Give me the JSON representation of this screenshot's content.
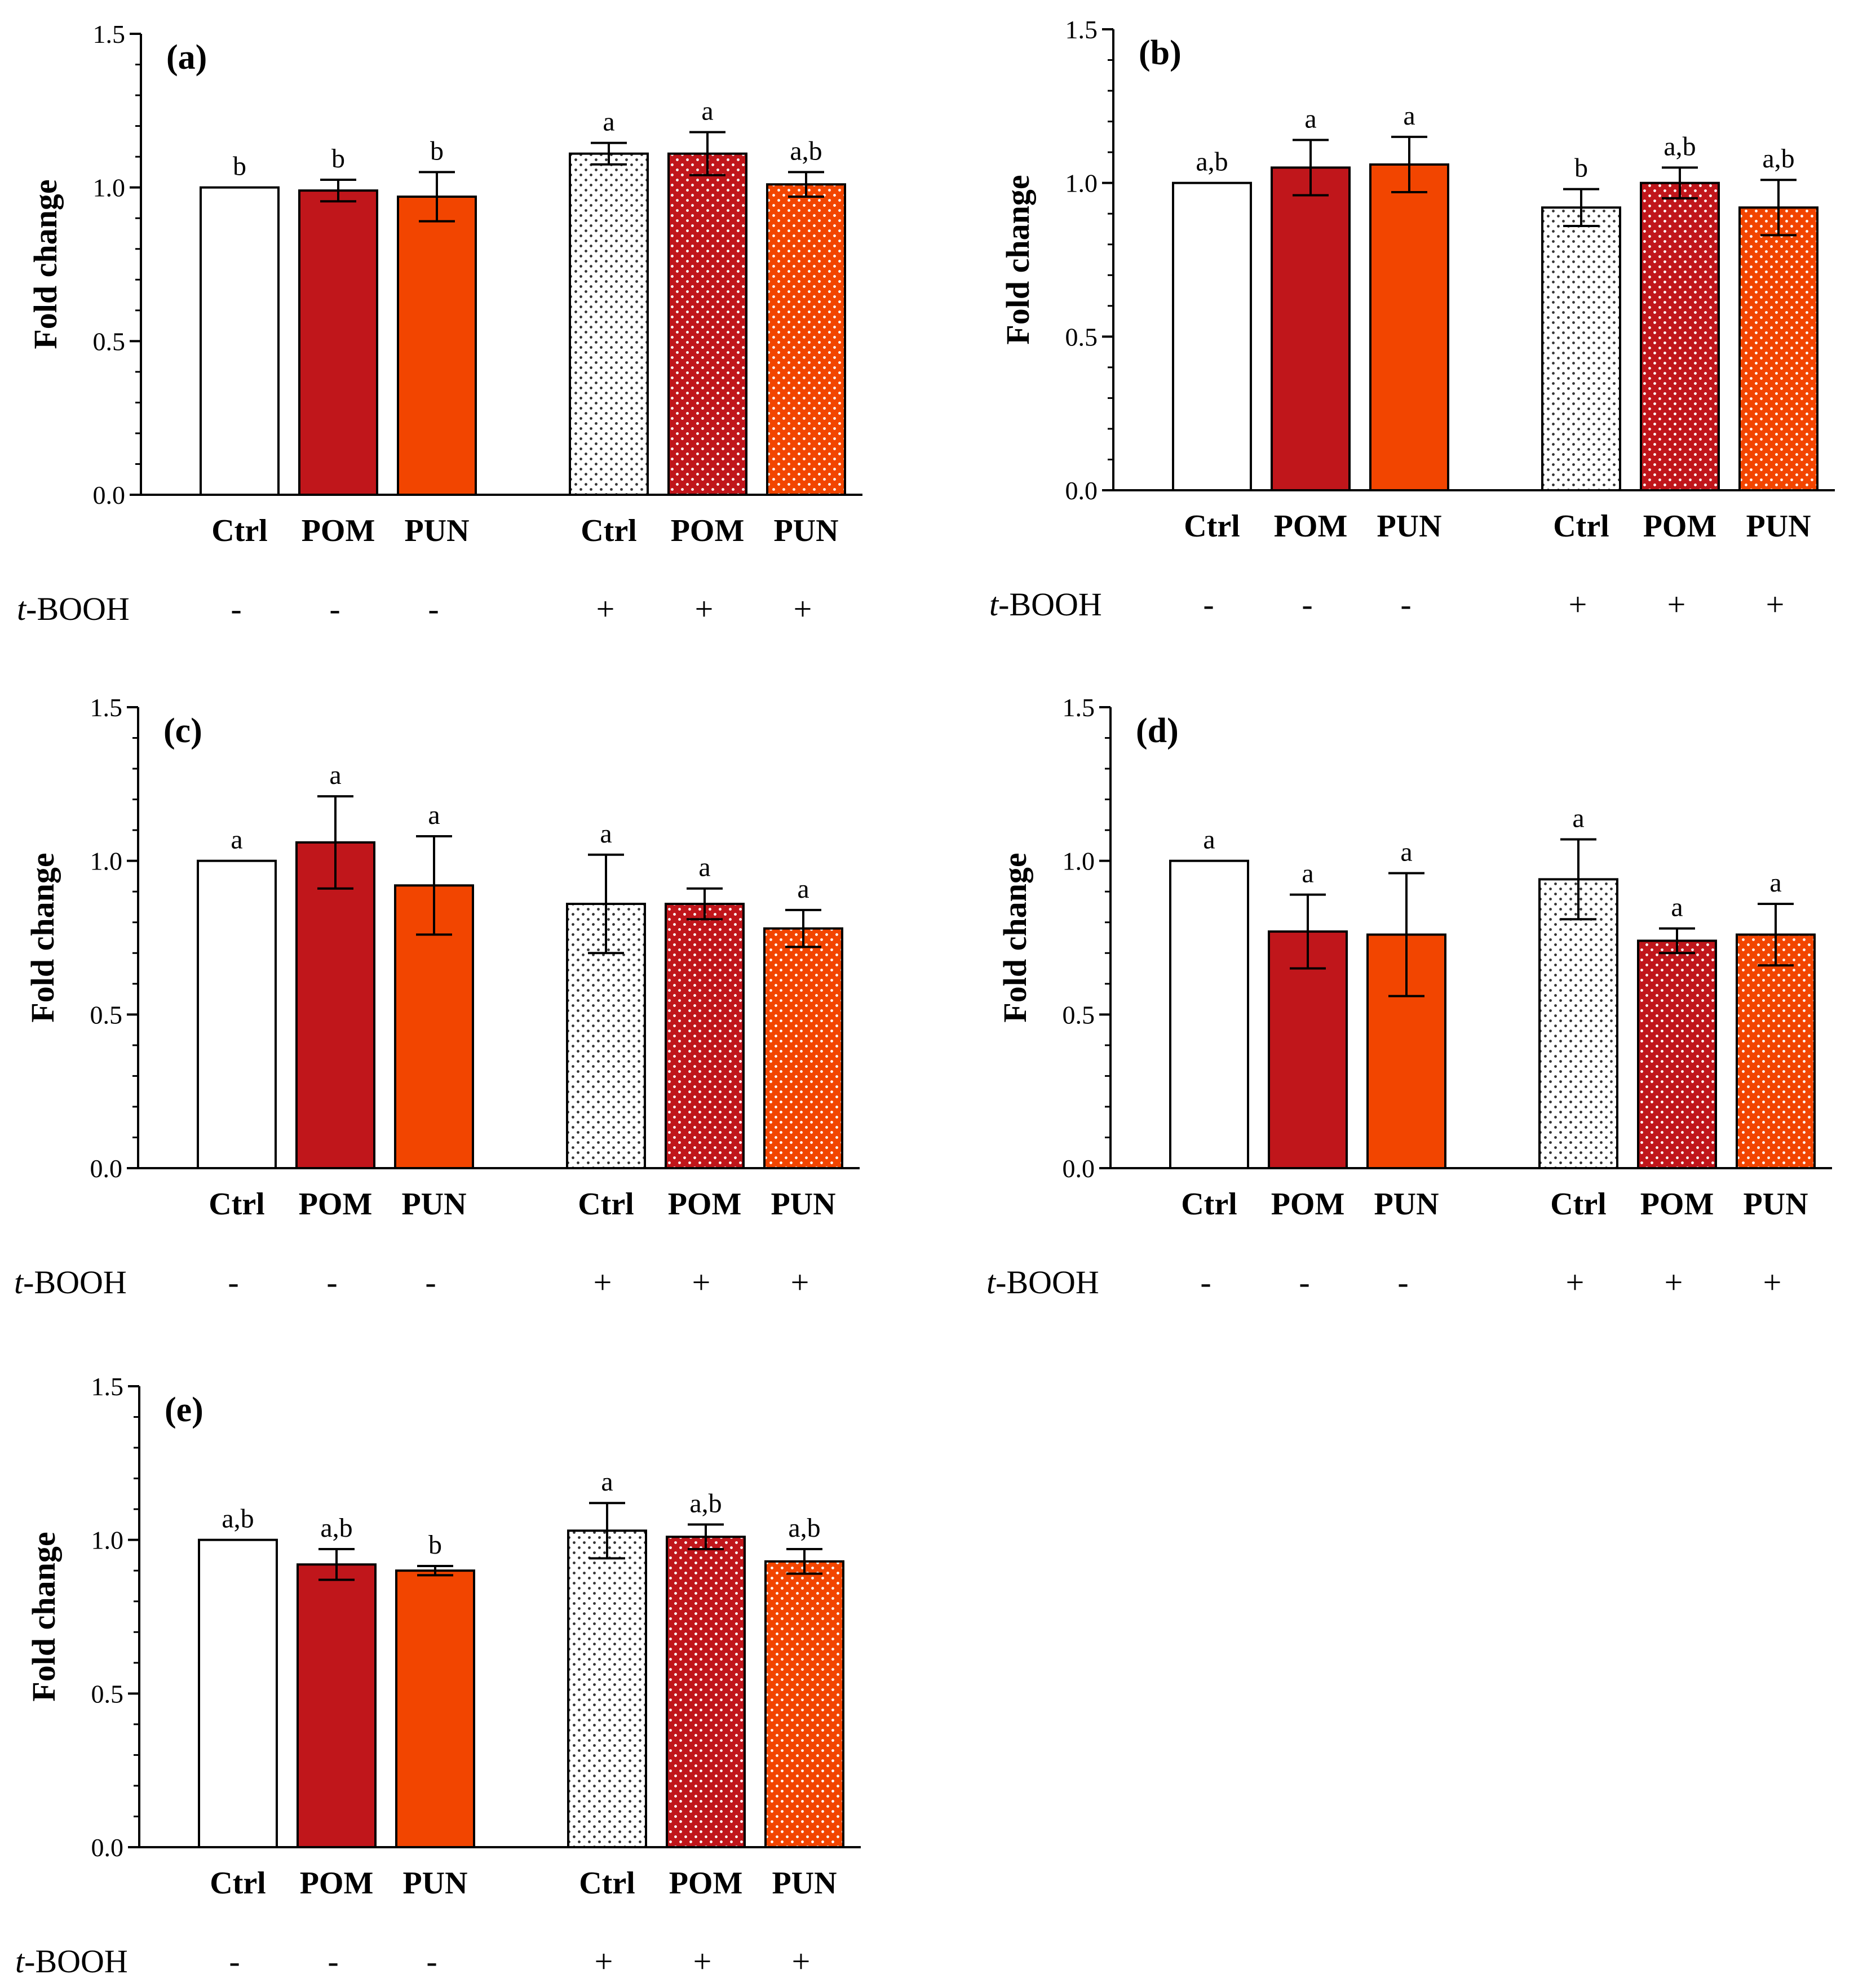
{
  "figure": {
    "colors": {
      "ctrl": "#ffffff",
      "pom": "#c0161b",
      "pun": "#f24500",
      "outline": "#000000",
      "ctrl_dots": "#333333",
      "fill_dots": "#ffffff"
    }
  },
  "chart_data": [
    {
      "type": "bar",
      "panel_label": "(a)",
      "ylabel": "Fold change",
      "ylim": [
        0,
        1.5
      ],
      "yticks": [
        "0.0",
        "0.5",
        "1.0",
        "1.5"
      ],
      "categories": [
        "Ctrl",
        "POM",
        "PUN",
        "Ctrl",
        "POM",
        "PUN"
      ],
      "treatment_label_italic": "t",
      "treatment_label_rest": "-BOOH",
      "treatment": [
        "-",
        "-",
        "-",
        "+",
        "+",
        "+"
      ],
      "values": [
        1.0,
        0.99,
        0.97,
        1.11,
        1.11,
        1.01
      ],
      "errors": [
        0,
        0.035,
        0.08,
        0.035,
        0.07,
        0.04
      ],
      "significance": [
        "b",
        "b",
        "b",
        "a",
        "a",
        "a,b"
      ]
    },
    {
      "type": "bar",
      "panel_label": "(b)",
      "ylabel": "Fold change",
      "ylim": [
        0,
        1.5
      ],
      "yticks": [
        "0.0",
        "0.5",
        "1.0",
        "1.5"
      ],
      "categories": [
        "Ctrl",
        "POM",
        "PUN",
        "Ctrl",
        "POM",
        "PUN"
      ],
      "treatment_label_italic": "t",
      "treatment_label_rest": "-BOOH",
      "treatment": [
        "-",
        "-",
        "-",
        "+",
        "+",
        "+"
      ],
      "values": [
        1.0,
        1.05,
        1.06,
        0.92,
        1.0,
        0.92
      ],
      "errors": [
        0,
        0.09,
        0.09,
        0.06,
        0.05,
        0.09
      ],
      "significance": [
        "a,b",
        "a",
        "a",
        "b",
        "a,b",
        "a,b"
      ]
    },
    {
      "type": "bar",
      "panel_label": "(c)",
      "ylabel": "Fold change",
      "ylim": [
        0,
        1.5
      ],
      "yticks": [
        "0.0",
        "0.5",
        "1.0",
        "1.5"
      ],
      "categories": [
        "Ctrl",
        "POM",
        "PUN",
        "Ctrl",
        "POM",
        "PUN"
      ],
      "treatment_label_italic": "t",
      "treatment_label_rest": "-BOOH",
      "treatment": [
        "-",
        "-",
        "-",
        "+",
        "+",
        "+"
      ],
      "values": [
        1.0,
        1.06,
        0.92,
        0.86,
        0.86,
        0.78
      ],
      "errors": [
        0,
        0.15,
        0.16,
        0.16,
        0.05,
        0.06
      ],
      "significance": [
        "a",
        "a",
        "a",
        "a",
        "a",
        "a"
      ]
    },
    {
      "type": "bar",
      "panel_label": "(d)",
      "ylabel": "Fold change",
      "ylim": [
        0,
        1.5
      ],
      "yticks": [
        "0.0",
        "0.5",
        "1.0",
        "1.5"
      ],
      "categories": [
        "Ctrl",
        "POM",
        "PUN",
        "Ctrl",
        "POM",
        "PUN"
      ],
      "treatment_label_italic": "t",
      "treatment_label_rest": "-BOOH",
      "treatment": [
        "-",
        "-",
        "-",
        "+",
        "+",
        "+"
      ],
      "values": [
        1.0,
        0.77,
        0.76,
        0.94,
        0.74,
        0.76
      ],
      "errors": [
        0,
        0.12,
        0.2,
        0.13,
        0.04,
        0.1
      ],
      "significance": [
        "a",
        "a",
        "a",
        "a",
        "a",
        "a"
      ]
    },
    {
      "type": "bar",
      "panel_label": "(e)",
      "ylabel": "Fold change",
      "ylim": [
        0,
        1.5
      ],
      "yticks": [
        "0.0",
        "0.5",
        "1.0",
        "1.5"
      ],
      "categories": [
        "Ctrl",
        "POM",
        "PUN",
        "Ctrl",
        "POM",
        "PUN"
      ],
      "treatment_label_italic": "t",
      "treatment_label_rest": "-BOOH",
      "treatment": [
        "-",
        "-",
        "-",
        "+",
        "+",
        "+"
      ],
      "values": [
        1.0,
        0.92,
        0.9,
        1.03,
        1.01,
        0.93
      ],
      "errors": [
        0,
        0.05,
        0.015,
        0.09,
        0.04,
        0.04
      ],
      "significance": [
        "a,b",
        "a,b",
        "b",
        "a",
        "a,b",
        "a,b"
      ]
    }
  ]
}
